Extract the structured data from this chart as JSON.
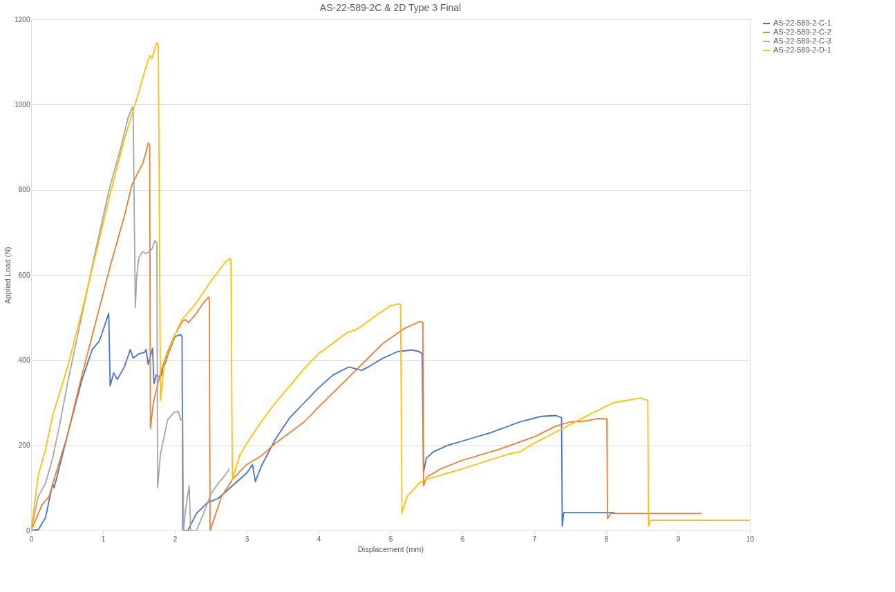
{
  "chart_data": {
    "type": "line",
    "title": "AS-22-589-2C & 2D Type 3 Final",
    "xlabel": "Displacement (mm)",
    "ylabel": "Applied Load (N)",
    "xlim": [
      0,
      10
    ],
    "ylim": [
      0,
      1200
    ],
    "xticks": [
      0,
      1,
      2,
      3,
      4,
      5,
      6,
      7,
      8,
      9,
      10
    ],
    "yticks": [
      0,
      200,
      400,
      600,
      800,
      1000,
      1200
    ],
    "grid": "y",
    "legend": "right",
    "marker": "none",
    "line_style": "solid",
    "series": [
      {
        "name": "AS-22-589-2-C-1",
        "color": "#4472c4",
        "x": [
          0,
          0.1,
          0.2,
          0.3,
          0.32,
          0.5,
          0.7,
          0.85,
          0.95,
          1.05,
          1.08,
          1.1,
          1.15,
          1.2,
          1.3,
          1.38,
          1.42,
          1.5,
          1.58,
          1.6,
          1.63,
          1.69,
          1.71,
          1.74,
          1.8,
          1.9,
          2.0,
          2.08,
          2.1,
          2.11,
          2.18,
          2.3,
          2.45,
          2.6,
          2.8,
          3.0,
          3.08,
          3.12,
          3.2,
          3.4,
          3.6,
          3.8,
          4.0,
          4.2,
          4.42,
          4.6,
          4.7,
          4.9,
          5.1,
          5.3,
          5.4,
          5.44,
          5.46,
          5.5,
          5.6,
          5.8,
          6.0,
          6.4,
          6.8,
          7.1,
          7.3,
          7.38,
          7.39,
          7.41,
          8.12
        ],
        "values": [
          0,
          2,
          30,
          110,
          100,
          220,
          350,
          425,
          445,
          495,
          510,
          340,
          370,
          355,
          385,
          425,
          405,
          415,
          418,
          425,
          390,
          428,
          345,
          365,
          360,
          410,
          455,
          460,
          455,
          0,
          0,
          40,
          65,
          75,
          105,
          135,
          155,
          115,
          150,
          215,
          265,
          300,
          335,
          365,
          384,
          376,
          385,
          405,
          420,
          424,
          420,
          415,
          137,
          170,
          185,
          200,
          210,
          230,
          255,
          268,
          270,
          265,
          10,
          42,
          42
        ]
      },
      {
        "name": "AS-22-589-2-C-2",
        "color": "#ed7d31",
        "x": [
          0,
          0.1,
          0.15,
          0.25,
          0.3,
          0.5,
          0.7,
          0.9,
          1.1,
          1.3,
          1.4,
          1.5,
          1.55,
          1.6,
          1.63,
          1.65,
          1.66,
          1.7,
          1.8,
          1.9,
          2.0,
          2.1,
          2.15,
          2.19,
          2.3,
          2.4,
          2.47,
          2.48,
          2.49,
          2.55,
          2.65,
          2.8,
          3.0,
          3.2,
          3.4,
          3.6,
          3.8,
          4.0,
          4.3,
          4.6,
          4.9,
          5.2,
          5.41,
          5.45,
          5.46,
          5.5,
          5.7,
          6.0,
          6.5,
          7.0,
          7.3,
          7.5,
          7.7,
          7.89,
          8.01,
          8.02,
          8.06,
          9.33
        ],
        "values": [
          0,
          40,
          60,
          80,
          110,
          220,
          360,
          490,
          620,
          740,
          810,
          845,
          860,
          890,
          910,
          905,
          240,
          300,
          370,
          420,
          460,
          490,
          495,
          488,
          510,
          535,
          548,
          545,
          0,
          30,
          80,
          120,
          155,
          175,
          205,
          230,
          255,
          290,
          340,
          390,
          440,
          475,
          491,
          488,
          105,
          125,
          145,
          165,
          190,
          220,
          245,
          255,
          257,
          263,
          262,
          28,
          40,
          40
        ]
      },
      {
        "name": "AS-22-589-2-C-3",
        "color": "#a5a5a5",
        "x": [
          0,
          0.1,
          0.2,
          0.3,
          0.4,
          0.5,
          0.7,
          0.9,
          1.1,
          1.25,
          1.35,
          1.41,
          1.42,
          1.45,
          1.47,
          1.5,
          1.55,
          1.6,
          1.68,
          1.72,
          1.75,
          1.76,
          1.8,
          1.9,
          1.99,
          2.05,
          2.08,
          2.11,
          2.12,
          2.15,
          2.2,
          2.22,
          2.3,
          2.4,
          2.5,
          2.6,
          2.7,
          2.76
        ],
        "values": [
          0,
          80,
          110,
          170,
          250,
          340,
          500,
          660,
          810,
          900,
          970,
          994,
          980,
          523,
          600,
          640,
          655,
          650,
          660,
          680,
          675,
          100,
          180,
          260,
          277,
          280,
          260,
          258,
          0,
          50,
          105,
          0,
          0,
          40,
          85,
          110,
          130,
          145
        ]
      },
      {
        "name": "AS-22-589-2-D-1",
        "color": "#ffc000",
        "x": [
          0,
          0.1,
          0.2,
          0.3,
          0.5,
          0.7,
          0.9,
          1.1,
          1.3,
          1.5,
          1.6,
          1.65,
          1.68,
          1.72,
          1.75,
          1.77,
          1.8,
          1.85,
          2.0,
          2.1,
          2.3,
          2.5,
          2.7,
          2.77,
          2.78,
          2.8,
          2.9,
          3.0,
          3.2,
          3.4,
          3.6,
          3.8,
          4.0,
          4.2,
          4.4,
          4.5,
          4.6,
          4.8,
          5.0,
          5.12,
          5.14,
          5.16,
          5.23,
          5.41,
          5.5,
          5.7,
          6.0,
          6.65,
          6.8,
          7.0,
          7.4,
          7.8,
          8.1,
          8.48,
          8.58,
          8.59,
          8.62,
          10
        ],
        "values": [
          0,
          130,
          190,
          270,
          380,
          510,
          650,
          790,
          920,
          1030,
          1090,
          1115,
          1108,
          1130,
          1145,
          1140,
          305,
          390,
          460,
          495,
          535,
          585,
          630,
          639,
          635,
          120,
          175,
          205,
          255,
          300,
          340,
          380,
          415,
          440,
          465,
          470,
          480,
          505,
          528,
          532,
          530,
          41,
          80,
          113,
          120,
          130,
          145,
          180,
          185,
          205,
          240,
          275,
          300,
          311,
          305,
          10,
          24,
          24
        ]
      }
    ]
  }
}
